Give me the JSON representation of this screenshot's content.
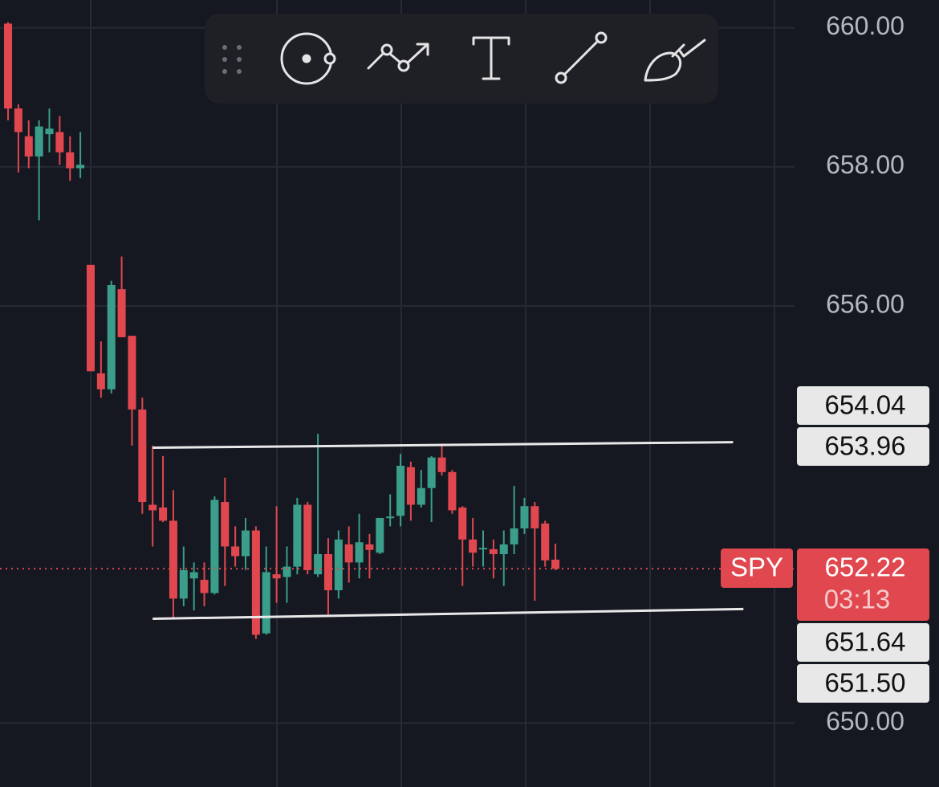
{
  "chart_data": {
    "type": "candlestick",
    "symbol": "SPY",
    "last_price": 652.22,
    "countdown": "03:13",
    "up_color": "#3a9e8a",
    "down_color": "#e0474f",
    "open": [
      660.06,
      658.84,
      658.44,
      658.15,
      658.47,
      658.5,
      658.21,
      657.98,
      656.59,
      655.03,
      654.8,
      656.24,
      655.57,
      654.51,
      653.14,
      653.1,
      652.91,
      651.79,
      652.08,
      652.06,
      651.87,
      653.18,
      652.54,
      652.4,
      652.77,
      651.29,
      652.14,
      652.1,
      652.25,
      653.14,
      652.14,
      652.43,
      651.91,
      652.57,
      652.31,
      652.57,
      652.45,
      652.95,
      652.98,
      653.68,
      653.14,
      653.38,
      653.82,
      653.61,
      653.1,
      652.64,
      652.5,
      652.5,
      652.43,
      652.57,
      652.8,
      653.12,
      652.87,
      652.35
    ],
    "high": [
      660.08,
      658.9,
      658.67,
      658.67,
      658.84,
      658.73,
      658.44,
      658.5,
      656.59,
      655.49,
      656.36,
      656.71,
      655.57,
      654.68,
      653.99,
      653.84,
      653.35,
      652.54,
      652.31,
      652.31,
      653.26,
      653.53,
      652.83,
      652.95,
      652.83,
      652.54,
      653.12,
      652.54,
      653.24,
      653.18,
      654.16,
      652.66,
      652.77,
      652.83,
      653.01,
      652.72,
      652.95,
      653.29,
      653.87,
      653.76,
      653.64,
      653.84,
      654.02,
      653.64,
      653.12,
      652.95,
      652.77,
      652.64,
      652.77,
      653.41,
      653.24,
      653.18,
      652.91,
      652.58
    ],
    "low": [
      658.67,
      657.92,
      657.98,
      657.23,
      658.21,
      658.03,
      657.8,
      657.84,
      655.06,
      654.68,
      654.74,
      655.55,
      653.99,
      653.01,
      652.54,
      652.89,
      651.5,
      651.68,
      651.62,
      651.68,
      651.85,
      651.97,
      652.25,
      652.2,
      651.21,
      651.27,
      651.73,
      651.73,
      652.14,
      652.14,
      652.1,
      651.56,
      651.79,
      652.02,
      652.08,
      652.08,
      652.43,
      652.83,
      652.83,
      652.91,
      653.1,
      652.89,
      653.56,
      653.01,
      651.97,
      652.25,
      652.25,
      652.08,
      651.97,
      652.43,
      652.72,
      651.76,
      652.25,
      652.2
    ],
    "close": [
      658.84,
      658.5,
      658.15,
      658.58,
      658.55,
      658.21,
      657.98,
      658.03,
      655.06,
      654.8,
      656.3,
      655.55,
      654.51,
      653.18,
      653.06,
      652.91,
      651.79,
      652.2,
      652.17,
      651.87,
      653.21,
      652.54,
      652.4,
      652.77,
      651.27,
      652.17,
      652.08,
      652.25,
      653.14,
      652.2,
      652.43,
      651.91,
      652.64,
      652.31,
      652.6,
      652.49,
      652.95,
      652.97,
      653.7,
      653.14,
      653.38,
      653.82,
      653.61,
      653.06,
      652.64,
      652.45,
      652.52,
      652.43,
      652.57,
      652.8,
      653.12,
      652.8,
      652.34,
      652.22
    ],
    "trend_lines": [
      {
        "x": [
          14,
          70.2
        ],
        "values": [
          653.96,
          654.04
        ],
        "value_labels": [
          "653.96",
          "654.04"
        ]
      },
      {
        "x": [
          14,
          71.2
        ],
        "values": [
          651.5,
          651.64
        ],
        "value_labels": [
          "651.50",
          "651.64"
        ]
      }
    ],
    "xlim": [
      -0.78,
      76.15
    ],
    "ylim": [
      649.08,
      660.4
    ],
    "yticks": [
      {
        "value": 650,
        "label": "650.00"
      },
      {
        "value": 656,
        "label": "656.00"
      },
      {
        "value": 658,
        "label": "658.00"
      },
      {
        "value": 660,
        "label": "660.00"
      }
    ],
    "grid": true
  }
}
